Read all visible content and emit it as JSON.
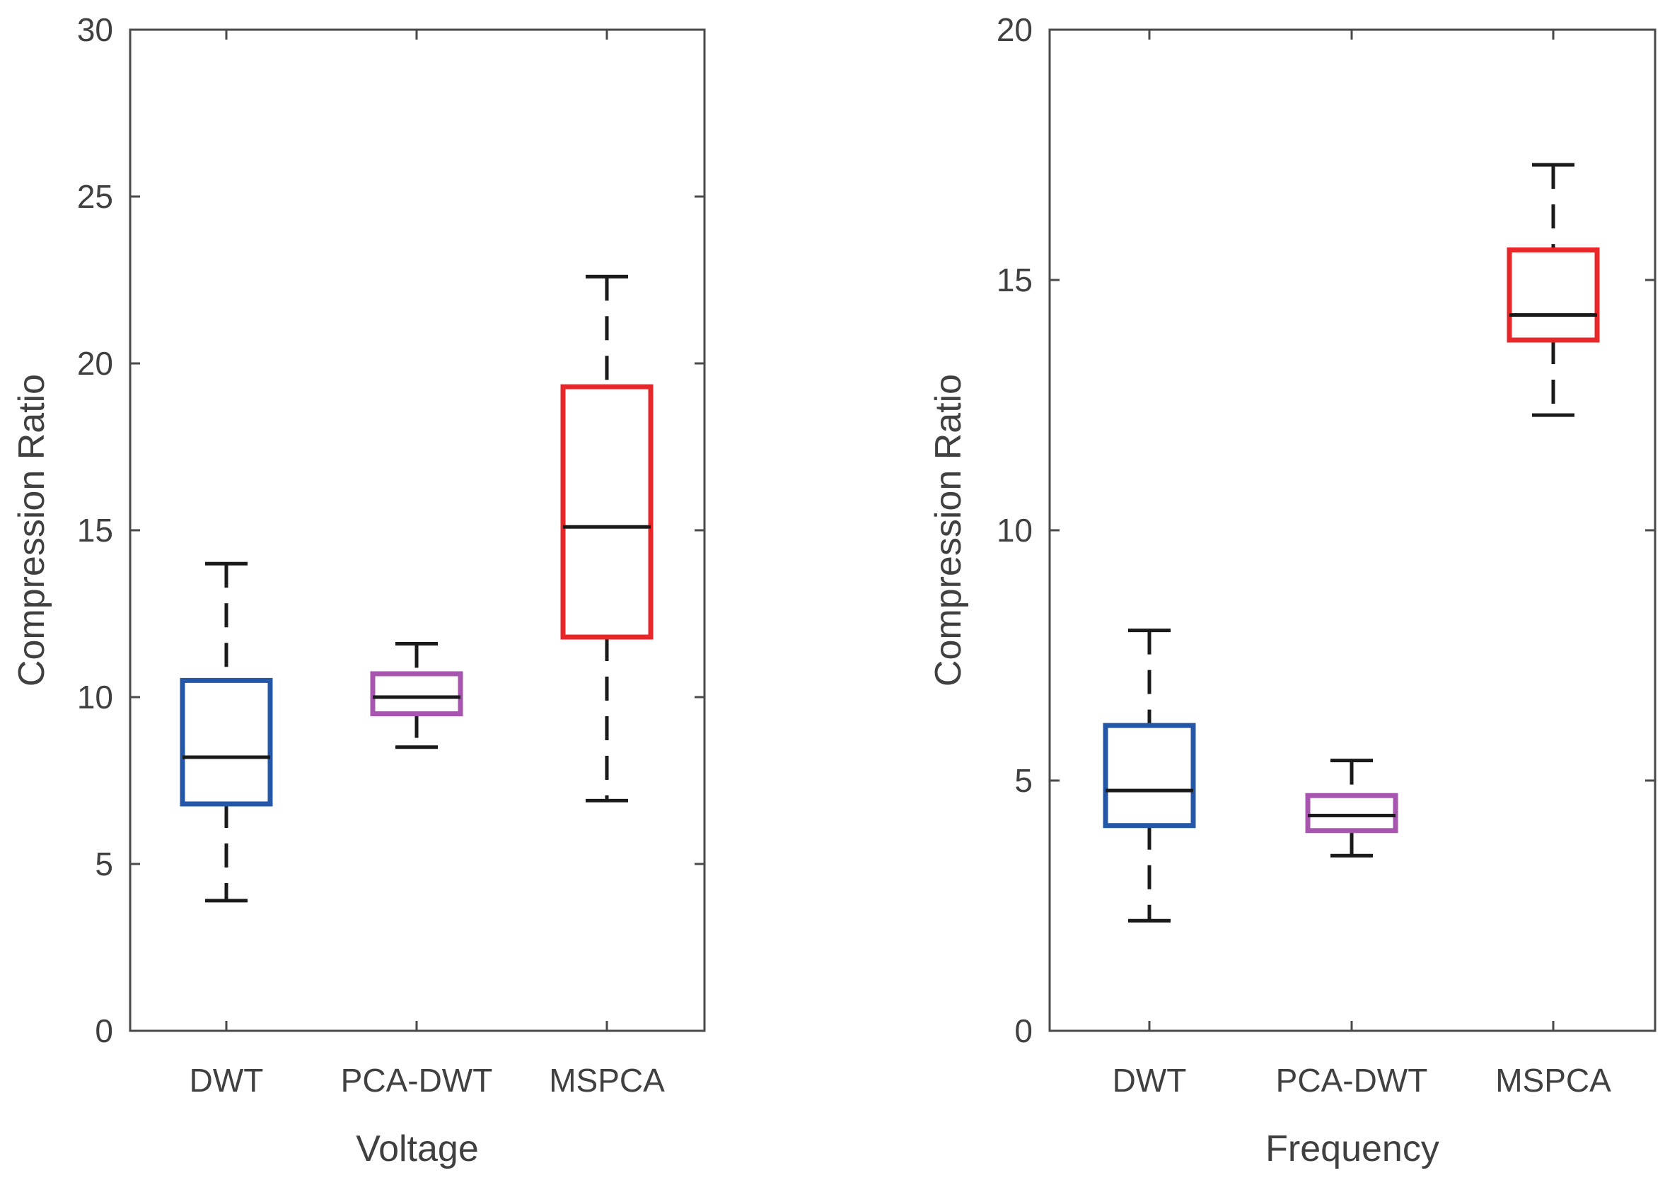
{
  "chart_data": [
    {
      "type": "boxplot",
      "xlabel": "Voltage",
      "ylabel": "Compression Ratio",
      "ylim": [
        0,
        30
      ],
      "yticks": [
        0,
        5,
        10,
        15,
        20,
        25,
        30
      ],
      "categories": [
        "DWT",
        "PCA-DWT",
        "MSPCA"
      ],
      "colors": [
        "#2457a8",
        "#a855b0",
        "#e8272a"
      ],
      "boxes": [
        {
          "whisker_low": 3.9,
          "q1": 6.8,
          "median": 8.2,
          "q3": 10.5,
          "whisker_high": 14.0
        },
        {
          "whisker_low": 8.5,
          "q1": 9.5,
          "median": 10.0,
          "q3": 10.7,
          "whisker_high": 11.6
        },
        {
          "whisker_low": 6.9,
          "q1": 11.8,
          "median": 15.1,
          "q3": 19.3,
          "whisker_high": 22.6
        }
      ]
    },
    {
      "type": "boxplot",
      "xlabel": "Frequency",
      "ylabel": "Compression Ratio",
      "ylim": [
        0,
        20
      ],
      "yticks": [
        0,
        5,
        10,
        15,
        20
      ],
      "categories": [
        "DWT",
        "PCA-DWT",
        "MSPCA"
      ],
      "colors": [
        "#2457a8",
        "#a855b0",
        "#e8272a"
      ],
      "boxes": [
        {
          "whisker_low": 2.2,
          "q1": 4.1,
          "median": 4.8,
          "q3": 6.1,
          "whisker_high": 8.0
        },
        {
          "whisker_low": 3.5,
          "q1": 4.0,
          "median": 4.3,
          "q3": 4.7,
          "whisker_high": 5.4
        },
        {
          "whisker_low": 12.3,
          "q1": 13.8,
          "median": 14.3,
          "q3": 15.6,
          "whisker_high": 17.3
        }
      ]
    }
  ]
}
